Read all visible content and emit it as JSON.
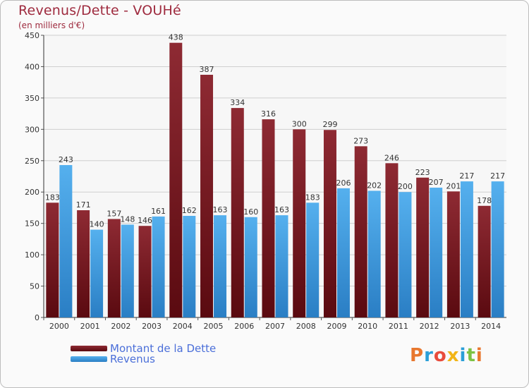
{
  "title": "Revenus/Dette - VOUHé",
  "subtitle": "(en milliers d'€)",
  "logo": {
    "letters": [
      {
        "ch": "P",
        "color": "#e8772e"
      },
      {
        "ch": "r",
        "color": "#2a9fd8"
      },
      {
        "ch": "o",
        "color": "#e84c3d"
      },
      {
        "ch": "x",
        "color": "#f2b517"
      },
      {
        "ch": "i",
        "color": "#2a9fd8"
      },
      {
        "ch": "t",
        "color": "#7cc243"
      },
      {
        "ch": "i",
        "color": "#e8772e"
      }
    ]
  },
  "colors": {
    "debt": "#7a1a22",
    "revenue": "#3f9be0",
    "text": "#9e2a3e",
    "legend_text": "#4b6fd9"
  },
  "chart_data": {
    "type": "bar",
    "categories": [
      "2000",
      "2001",
      "2002",
      "2003",
      "2004",
      "2005",
      "2006",
      "2007",
      "2008",
      "2009",
      "2010",
      "2011",
      "2012",
      "2013",
      "2014"
    ],
    "series": [
      {
        "name": "Montant de la Dette",
        "values": [
          183,
          171,
          157,
          146,
          438,
          387,
          334,
          316,
          300,
          299,
          273,
          246,
          223,
          201,
          178
        ]
      },
      {
        "name": "Revenus",
        "values": [
          243,
          140,
          148,
          161,
          162,
          163,
          160,
          163,
          183,
          206,
          202,
          200,
          207,
          217,
          217
        ]
      }
    ],
    "ylim": [
      0,
      450
    ],
    "yticks": [
      0,
      50,
      100,
      150,
      200,
      250,
      300,
      350,
      400,
      450
    ],
    "grid": true,
    "legend": "bottom-left"
  }
}
